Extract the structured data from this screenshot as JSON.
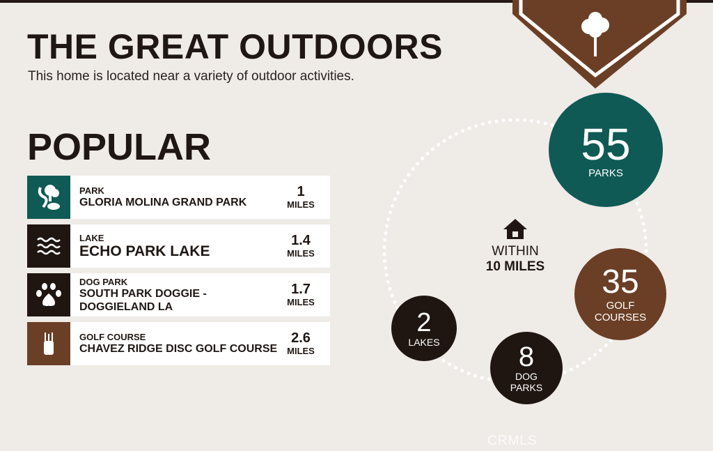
{
  "header": {
    "title": "THE GREAT OUTDOORS",
    "subtitle": "This home is located near a variety of outdoor activities."
  },
  "badge": {
    "icon": "tree-icon",
    "color": "#6b3f26"
  },
  "popular": {
    "heading": "POPULAR",
    "items": [
      {
        "category": "PARK",
        "name": "GLORIA MOLINA GRAND PARK",
        "distance": "1",
        "unit": "MILES",
        "icon": "park-icon",
        "color": "#0f5a55"
      },
      {
        "category": "LAKE",
        "name": "ECHO PARK LAKE",
        "distance": "1.4",
        "unit": "MILES",
        "icon": "waves-icon",
        "color": "#1f1612"
      },
      {
        "category": "DOG PARK",
        "name": "SOUTH PARK DOGGIE - DOGGIELAND LA",
        "distance": "1.7",
        "unit": "MILES",
        "icon": "paw-icon",
        "color": "#1f1612"
      },
      {
        "category": "GOLF COURSE",
        "name": "CHAVEZ RIDGE DISC GOLF COURSE",
        "distance": "2.6",
        "unit": "MILES",
        "icon": "golf-bag-icon",
        "color": "#6b3f26"
      }
    ]
  },
  "within": {
    "line1": "WITHIN",
    "line2": "10 MILES",
    "icon": "house-icon"
  },
  "counts": [
    {
      "value": "55",
      "label": "PARKS",
      "color": "#0f5a55"
    },
    {
      "value": "35",
      "label": "GOLF COURSES",
      "color": "#6b3f26"
    },
    {
      "value": "8",
      "label": "DOG PARKS",
      "color": "#1f1612"
    },
    {
      "value": "2",
      "label": "LAKES",
      "color": "#1f1612"
    }
  ],
  "watermark": "CRMLS"
}
